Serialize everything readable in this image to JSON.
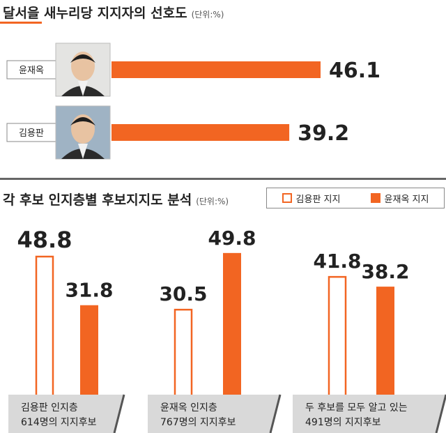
{
  "colors": {
    "accent": "#f26522",
    "text": "#222222",
    "separator": "#666666",
    "label_band": "#d9d9d9"
  },
  "top_chart": {
    "title": "달서을 새누리당 지지자의 선호도",
    "unit": "(단위:%)"
  },
  "bottom_chart": {
    "title": "각 후보 인지층별 후보지지도 분석",
    "unit": "(단위:%)"
  },
  "chart_data": [
    {
      "type": "bar",
      "orientation": "horizontal",
      "title": "달서을 새누리당 지지자의 선호도",
      "unit": "(단위:%)",
      "categories": [
        "윤재옥",
        "김용판"
      ],
      "values": [
        46.1,
        39.2
      ],
      "xlim": [
        0,
        50
      ],
      "grid": false
    },
    {
      "type": "bar",
      "title": "각 후보 인지층별 후보지지도 분석",
      "unit": "(단위:%)",
      "categories": [
        "김용판 인지층 614명의 지지후보",
        "윤재옥 인지층 767명의 지지후보",
        "두 후보를 모두 알고 있는 491명의 지지후보"
      ],
      "category_lines": [
        [
          "김용판 인지층",
          "614명의 지지후보"
        ],
        [
          "윤재옥 인지층",
          "767명의 지지후보"
        ],
        [
          "두 후보를 모두 알고 있는",
          "491명의 지지후보"
        ]
      ],
      "series": [
        {
          "name": "김용판 지지",
          "style": "outline",
          "values": [
            48.8,
            30.5,
            41.8
          ]
        },
        {
          "name": "윤재옥 지지",
          "style": "filled",
          "values": [
            31.8,
            49.8,
            38.2
          ]
        }
      ],
      "ylim": [
        0,
        55
      ],
      "legend": "top-right",
      "grid": false
    }
  ]
}
